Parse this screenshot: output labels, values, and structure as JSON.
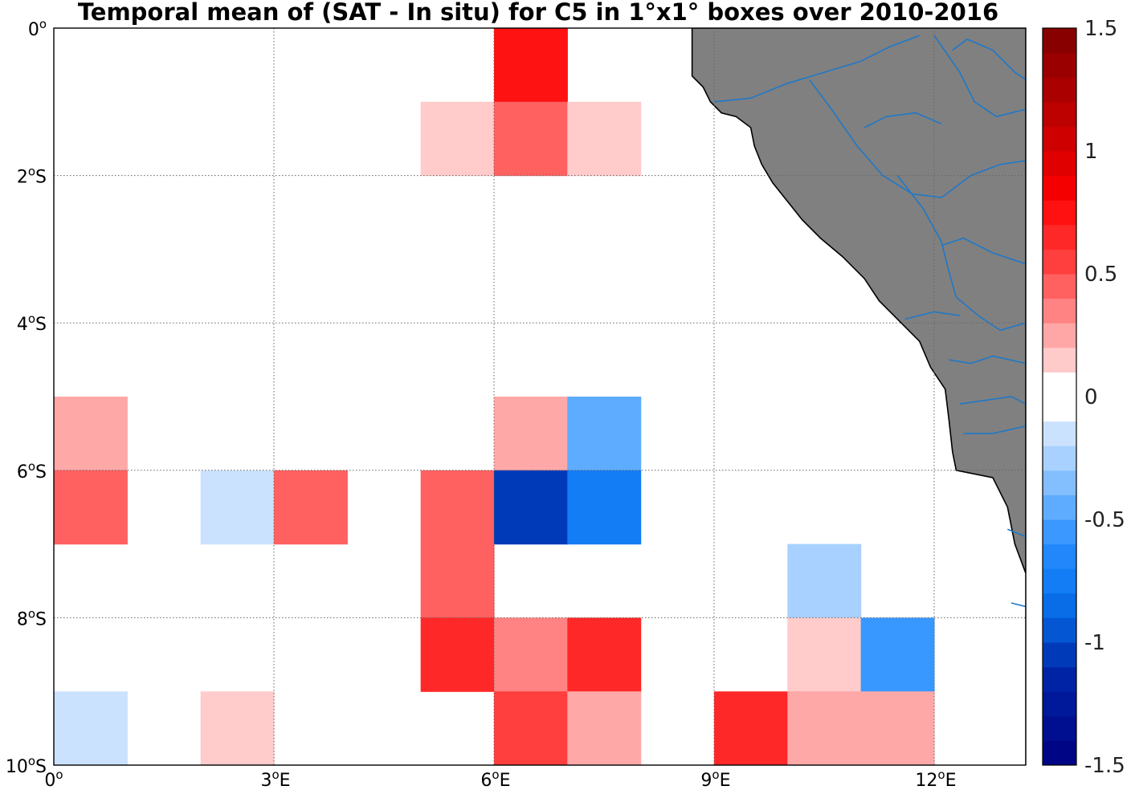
{
  "chart_data": {
    "type": "heatmap",
    "title": "Temporal mean of (SAT - In situ) for C5 in 1°x1° boxes over 2010-2016",
    "x_range": [
      0,
      13.25
    ],
    "y_range": [
      -10,
      0
    ],
    "x_ticks": [
      {
        "value": 0,
        "label": "0",
        "sup": "o",
        "suffix": ""
      },
      {
        "value": 3,
        "label": "3",
        "sup": "o",
        "suffix": "E"
      },
      {
        "value": 6,
        "label": "6",
        "sup": "o",
        "suffix": "E"
      },
      {
        "value": 9,
        "label": "9",
        "sup": "o",
        "suffix": "E"
      },
      {
        "value": 12,
        "label": "12",
        "sup": "o",
        "suffix": "E"
      }
    ],
    "y_ticks": [
      {
        "value": 0,
        "label": "0",
        "sup": "o",
        "suffix": ""
      },
      {
        "value": -2,
        "label": "2",
        "sup": "o",
        "suffix": "S"
      },
      {
        "value": -4,
        "label": "4",
        "sup": "o",
        "suffix": "S"
      },
      {
        "value": -6,
        "label": "6",
        "sup": "o",
        "suffix": "S"
      },
      {
        "value": -8,
        "label": "8",
        "sup": "o",
        "suffix": "S"
      },
      {
        "value": -10,
        "label": "10",
        "sup": "o",
        "suffix": "S"
      }
    ],
    "grid": true,
    "colorbar": {
      "min": -1.5,
      "max": 1.5,
      "step": 0.1,
      "position": "right",
      "ticks": [
        {
          "value": 1.5,
          "label": "1.5"
        },
        {
          "value": 1,
          "label": "1"
        },
        {
          "value": 0.5,
          "label": "0.5"
        },
        {
          "value": 0,
          "label": "0"
        },
        {
          "value": -0.5,
          "label": "-0.5"
        },
        {
          "value": -1,
          "label": "-1"
        },
        {
          "value": -1.5,
          "label": "-1.5"
        }
      ]
    },
    "cells": [
      {
        "lon": 6,
        "lat": -1,
        "value": 0.75
      },
      {
        "lon": 5,
        "lat": -2,
        "value": 0.15
      },
      {
        "lon": 6,
        "lat": -2,
        "value": 0.45
      },
      {
        "lon": 7,
        "lat": -2,
        "value": 0.15
      },
      {
        "lon": 0,
        "lat": -6,
        "value": 0.25
      },
      {
        "lon": 6,
        "lat": -6,
        "value": 0.25
      },
      {
        "lon": 7,
        "lat": -6,
        "value": -0.45
      },
      {
        "lon": 0,
        "lat": -7,
        "value": 0.45
      },
      {
        "lon": 2,
        "lat": -7,
        "value": -0.15
      },
      {
        "lon": 3,
        "lat": -7,
        "value": 0.45
      },
      {
        "lon": 5,
        "lat": -7,
        "value": 0.45
      },
      {
        "lon": 6,
        "lat": -7,
        "value": -1.05
      },
      {
        "lon": 7,
        "lat": -7,
        "value": -0.75
      },
      {
        "lon": 5,
        "lat": -8,
        "value": 0.45
      },
      {
        "lon": 10,
        "lat": -8,
        "value": -0.25
      },
      {
        "lon": 5,
        "lat": -9,
        "value": 0.65
      },
      {
        "lon": 6,
        "lat": -9,
        "value": 0.35
      },
      {
        "lon": 7,
        "lat": -9,
        "value": 0.65
      },
      {
        "lon": 10,
        "lat": -9,
        "value": 0.15
      },
      {
        "lon": 11,
        "lat": -9,
        "value": -0.55
      },
      {
        "lon": 0,
        "lat": -10,
        "value": -0.15
      },
      {
        "lon": 2,
        "lat": -10,
        "value": 0.15
      },
      {
        "lon": 6,
        "lat": -10,
        "value": 0.55
      },
      {
        "lon": 7,
        "lat": -10,
        "value": 0.25
      },
      {
        "lon": 9,
        "lat": -10,
        "value": 0.65
      },
      {
        "lon": 10,
        "lat": -10,
        "value": 0.25
      },
      {
        "lon": 11,
        "lat": -10,
        "value": 0.25
      }
    ],
    "coastline": [
      [
        8.7,
        -0.65
      ],
      [
        8.85,
        -0.8
      ],
      [
        8.95,
        -1.0
      ],
      [
        9.1,
        -1.15
      ],
      [
        9.3,
        -1.2
      ],
      [
        9.5,
        -1.35
      ],
      [
        9.55,
        -1.6
      ],
      [
        9.65,
        -1.85
      ],
      [
        9.8,
        -2.1
      ],
      [
        10.0,
        -2.35
      ],
      [
        10.2,
        -2.6
      ],
      [
        10.45,
        -2.85
      ],
      [
        10.75,
        -3.1
      ],
      [
        11.05,
        -3.4
      ],
      [
        11.25,
        -3.7
      ],
      [
        11.5,
        -3.95
      ],
      [
        11.8,
        -4.25
      ],
      [
        11.95,
        -4.6
      ],
      [
        12.15,
        -4.9
      ],
      [
        12.2,
        -5.3
      ],
      [
        12.25,
        -5.75
      ],
      [
        12.3,
        -6.0
      ],
      [
        12.8,
        -6.1
      ],
      [
        13.0,
        -6.5
      ],
      [
        13.1,
        -7.0
      ],
      [
        13.25,
        -7.4
      ],
      [
        13.25,
        -10
      ],
      [
        13.25,
        0
      ],
      [
        8.7,
        0
      ]
    ],
    "rivers": [
      [
        [
          9.0,
          -1.0
        ],
        [
          9.5,
          -0.95
        ],
        [
          10.0,
          -0.75
        ],
        [
          10.5,
          -0.6
        ],
        [
          11.0,
          -0.45
        ],
        [
          11.4,
          -0.25
        ],
        [
          11.8,
          -0.1
        ]
      ],
      [
        [
          10.3,
          -0.7
        ],
        [
          10.6,
          -1.1
        ],
        [
          10.95,
          -1.6
        ],
        [
          11.3,
          -2.0
        ],
        [
          11.7,
          -2.25
        ],
        [
          12.1,
          -2.3
        ],
        [
          12.5,
          -2.0
        ],
        [
          12.9,
          -1.85
        ],
        [
          13.25,
          -1.8
        ]
      ],
      [
        [
          11.5,
          -2.0
        ],
        [
          11.85,
          -2.45
        ],
        [
          12.1,
          -2.9
        ],
        [
          12.2,
          -3.3
        ],
        [
          12.3,
          -3.65
        ],
        [
          12.6,
          -3.9
        ],
        [
          12.9,
          -4.1
        ],
        [
          13.25,
          -4.0
        ]
      ],
      [
        [
          12.1,
          -2.95
        ],
        [
          12.4,
          -2.85
        ],
        [
          12.8,
          -3.05
        ],
        [
          13.25,
          -3.2
        ]
      ],
      [
        [
          11.6,
          -3.95
        ],
        [
          12.0,
          -3.85
        ],
        [
          12.35,
          -3.9
        ]
      ],
      [
        [
          12.2,
          -4.5
        ],
        [
          12.5,
          -4.55
        ],
        [
          12.8,
          -4.45
        ],
        [
          13.25,
          -4.55
        ]
      ],
      [
        [
          12.35,
          -5.1
        ],
        [
          12.7,
          -5.05
        ],
        [
          13.05,
          -5.0
        ],
        [
          13.25,
          -5.1
        ]
      ],
      [
        [
          12.4,
          -5.5
        ],
        [
          12.8,
          -5.5
        ],
        [
          13.25,
          -5.4
        ]
      ],
      [
        [
          12.0,
          -0.1
        ],
        [
          12.35,
          -0.6
        ],
        [
          12.55,
          -1.0
        ],
        [
          12.85,
          -1.2
        ],
        [
          13.25,
          -1.1
        ]
      ],
      [
        [
          12.25,
          -0.3
        ],
        [
          12.45,
          -0.15
        ],
        [
          12.8,
          -0.3
        ],
        [
          13.1,
          -0.6
        ],
        [
          13.25,
          -0.7
        ]
      ],
      [
        [
          11.05,
          -1.35
        ],
        [
          11.35,
          -1.2
        ],
        [
          11.75,
          -1.15
        ],
        [
          12.1,
          -1.3
        ]
      ],
      [
        [
          13.0,
          -6.8
        ],
        [
          13.25,
          -6.9
        ]
      ],
      [
        [
          13.05,
          -7.8
        ],
        [
          13.25,
          -7.85
        ]
      ]
    ],
    "colors": {
      "land": "#808080",
      "coast": "#000000",
      "river": "#1f78c8",
      "grid": "#666666"
    }
  }
}
